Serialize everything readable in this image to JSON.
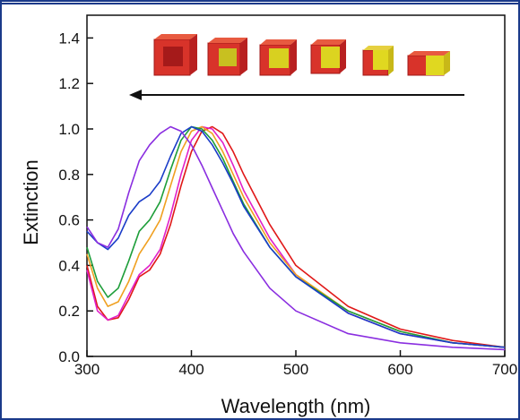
{
  "chart_data": {
    "type": "line",
    "x_label": "Wavelength (nm)",
    "y_label": "Extinction",
    "x": [
      300,
      310,
      320,
      330,
      340,
      350,
      360,
      370,
      380,
      390,
      400,
      410,
      420,
      430,
      440,
      450,
      475,
      500,
      550,
      600,
      650,
      700
    ],
    "series": [
      {
        "color": "#e01818",
        "values": [
          0.4,
          0.22,
          0.16,
          0.17,
          0.25,
          0.35,
          0.38,
          0.45,
          0.58,
          0.75,
          0.9,
          0.99,
          1.01,
          0.98,
          0.9,
          0.8,
          0.58,
          0.4,
          0.22,
          0.12,
          0.07,
          0.04
        ]
      },
      {
        "color": "#e020c8",
        "values": [
          0.38,
          0.2,
          0.16,
          0.18,
          0.27,
          0.36,
          0.4,
          0.47,
          0.62,
          0.8,
          0.95,
          1.01,
          1.0,
          0.94,
          0.84,
          0.73,
          0.52,
          0.36,
          0.19,
          0.1,
          0.06,
          0.04
        ]
      },
      {
        "color": "#f0a020",
        "values": [
          0.45,
          0.3,
          0.22,
          0.24,
          0.33,
          0.45,
          0.52,
          0.6,
          0.75,
          0.9,
          0.99,
          1.01,
          0.98,
          0.9,
          0.8,
          0.7,
          0.5,
          0.36,
          0.2,
          0.11,
          0.06,
          0.04
        ]
      },
      {
        "color": "#1e9e3a",
        "values": [
          0.48,
          0.33,
          0.26,
          0.3,
          0.42,
          0.55,
          0.6,
          0.68,
          0.82,
          0.95,
          1.01,
          1.0,
          0.95,
          0.87,
          0.77,
          0.67,
          0.48,
          0.35,
          0.2,
          0.11,
          0.06,
          0.04
        ]
      },
      {
        "color": "#1a3cc8",
        "values": [
          0.55,
          0.5,
          0.47,
          0.52,
          0.62,
          0.68,
          0.71,
          0.77,
          0.88,
          0.98,
          1.01,
          0.99,
          0.93,
          0.85,
          0.76,
          0.66,
          0.48,
          0.35,
          0.19,
          0.1,
          0.06,
          0.04
        ]
      },
      {
        "color": "#8a2ee0",
        "values": [
          0.57,
          0.5,
          0.48,
          0.56,
          0.72,
          0.86,
          0.93,
          0.98,
          1.01,
          0.99,
          0.93,
          0.84,
          0.74,
          0.64,
          0.54,
          0.46,
          0.3,
          0.2,
          0.1,
          0.06,
          0.04,
          0.03
        ]
      }
    ],
    "xlim": [
      300,
      700
    ],
    "ylim": [
      0,
      1.5
    ],
    "xticks": [
      300,
      400,
      500,
      600,
      700
    ],
    "yticks": [
      {
        "value": 0,
        "label": "0.0"
      },
      {
        "value": 0.2,
        "label": "0.2"
      },
      {
        "value": 0.4,
        "label": "0.4"
      },
      {
        "value": 0.6,
        "label": "0.6"
      },
      {
        "value": 0.8,
        "label": "0.8"
      },
      {
        "value": 1.0,
        "label": "1.0"
      },
      {
        "value": 1.2,
        "label": "1.2"
      },
      {
        "value": 1.4,
        "label": "1.4"
      }
    ]
  }
}
